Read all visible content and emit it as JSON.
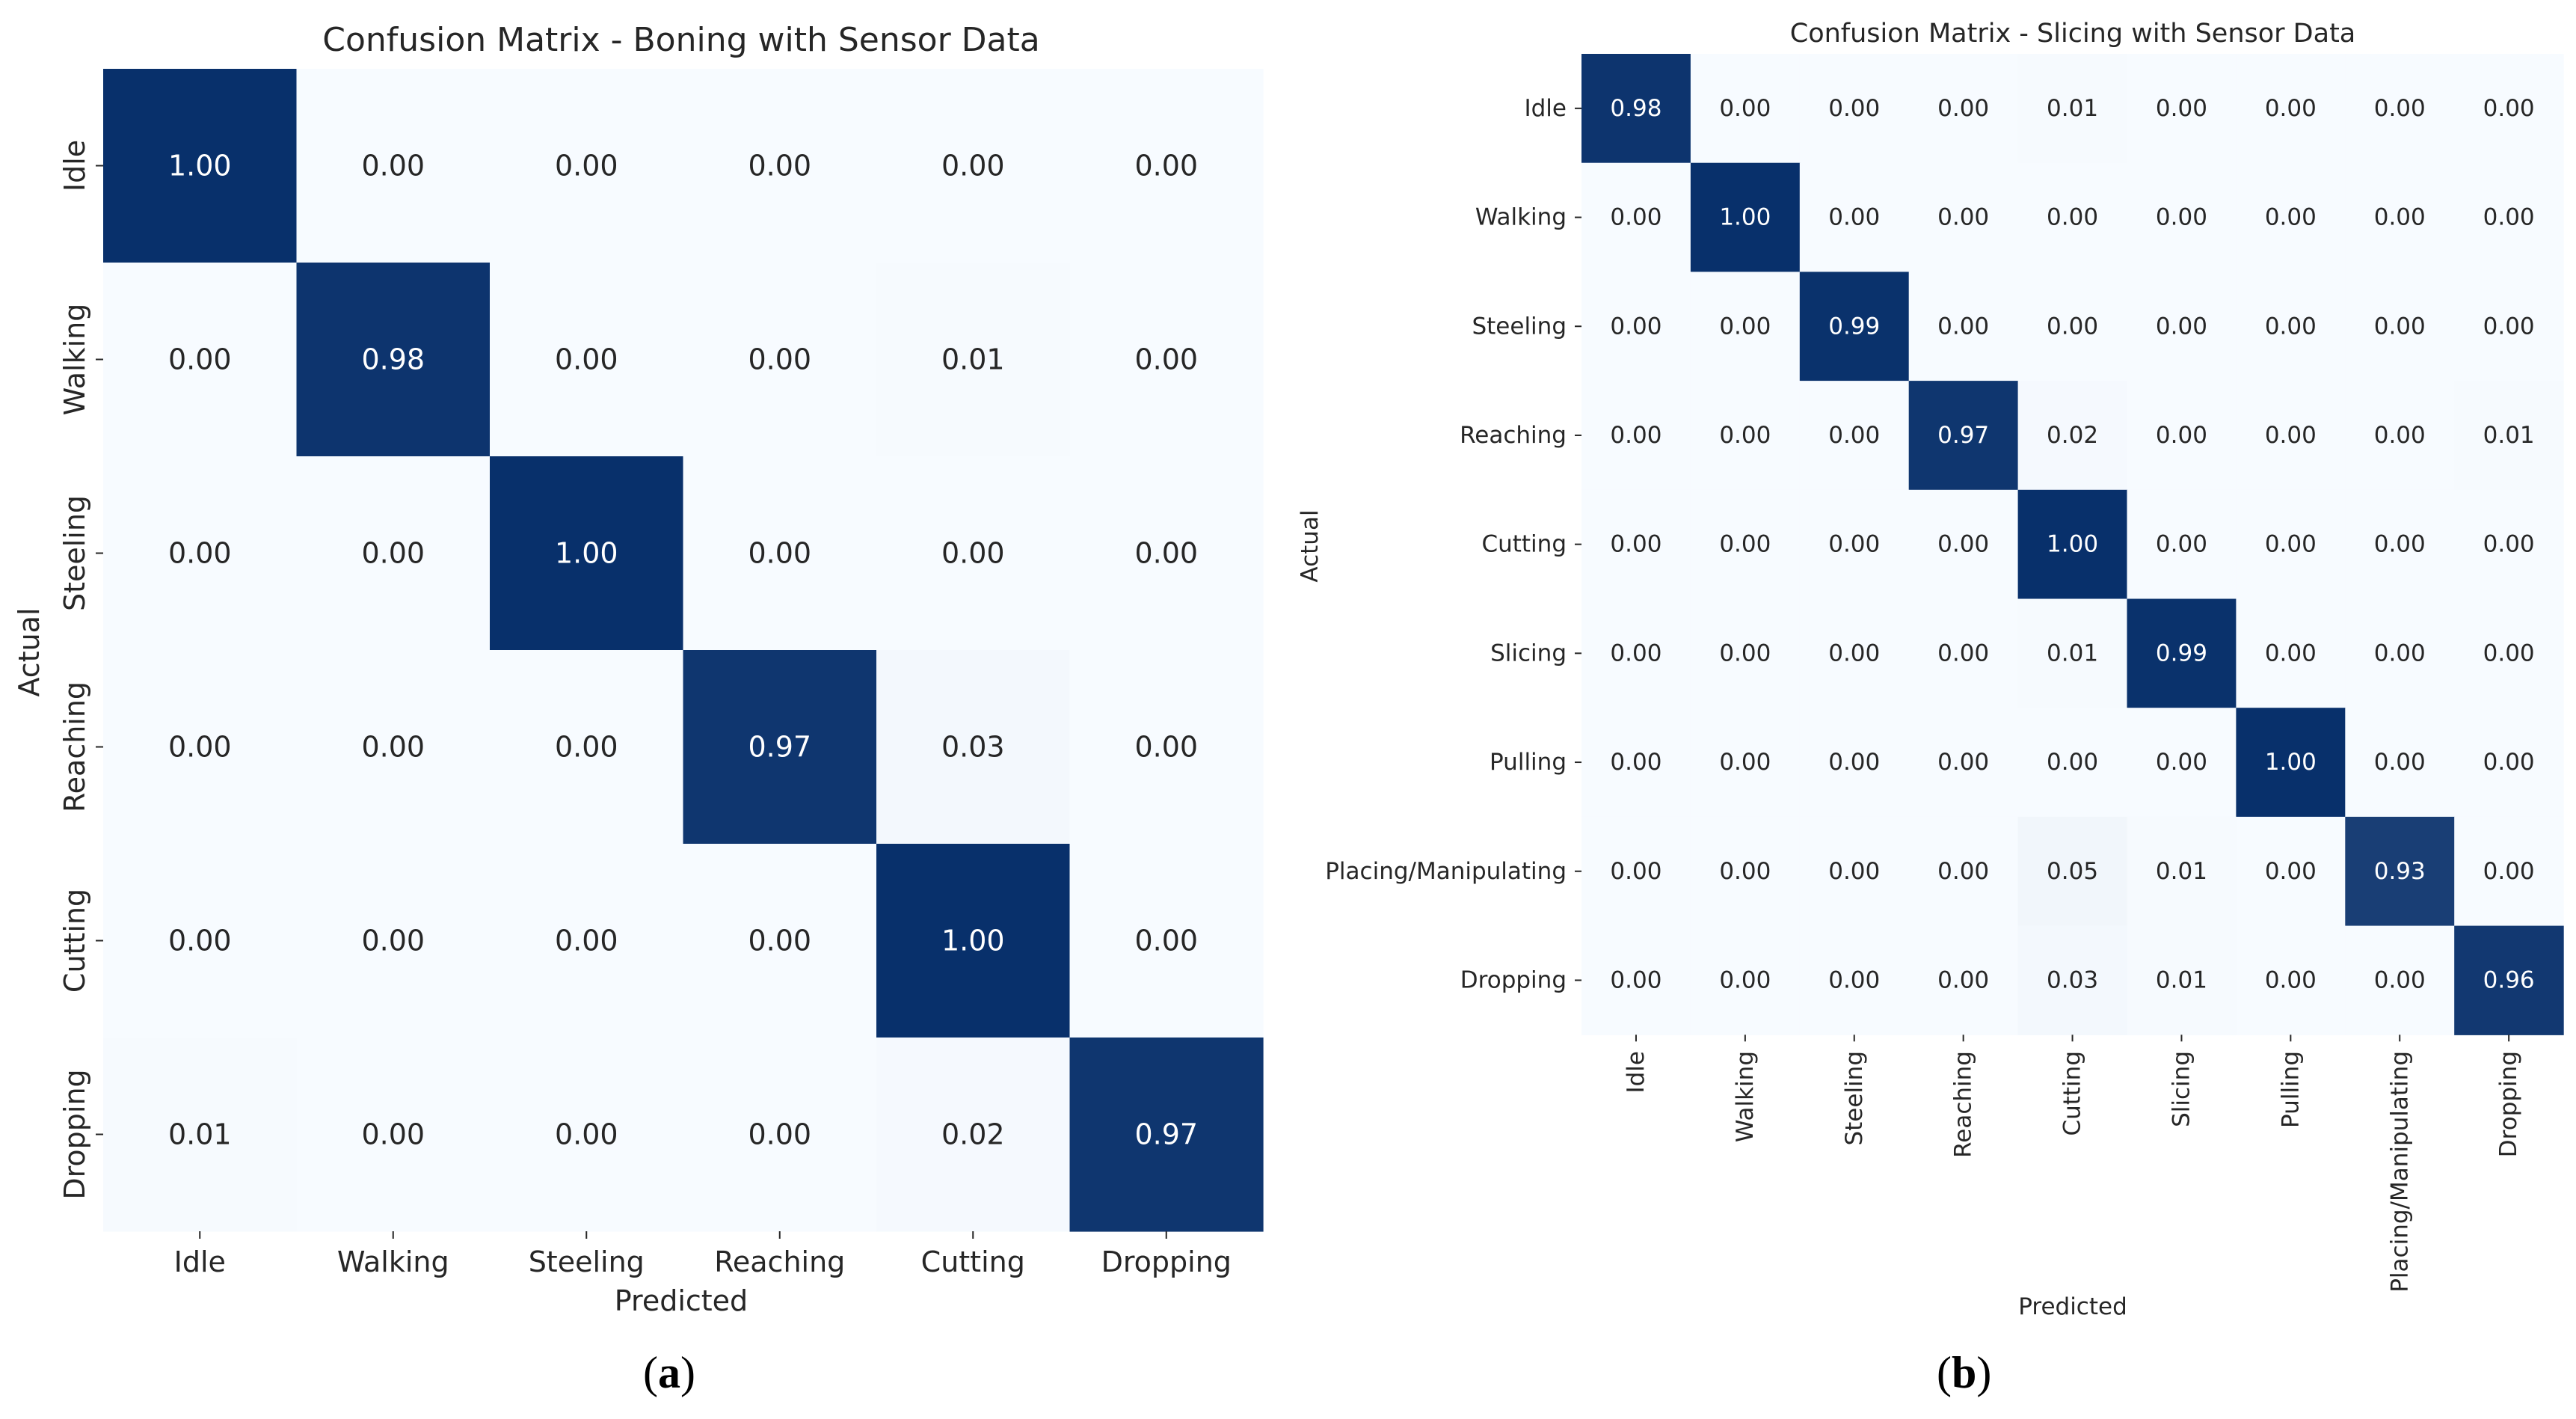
{
  "chart_data": [
    {
      "type": "heatmap",
      "title": "Confusion Matrix - Boning with Sensor Data",
      "xlabel": "Predicted",
      "ylabel": "Actual",
      "panel_label": "a",
      "x_categories": [
        "Idle",
        "Walking",
        "Steeling",
        "Reaching",
        "Cutting",
        "Dropping"
      ],
      "y_categories": [
        "Idle",
        "Walking",
        "Steeling",
        "Reaching",
        "Cutting",
        "Dropping"
      ],
      "values": [
        [
          "1.00",
          "0.00",
          "0.00",
          "0.00",
          "0.00",
          "0.00"
        ],
        [
          "0.00",
          "0.98",
          "0.00",
          "0.00",
          "0.01",
          "0.00"
        ],
        [
          "0.00",
          "0.00",
          "1.00",
          "0.00",
          "0.00",
          "0.00"
        ],
        [
          "0.00",
          "0.00",
          "0.00",
          "0.97",
          "0.03",
          "0.00"
        ],
        [
          "0.00",
          "0.00",
          "0.00",
          "0.00",
          "1.00",
          "0.00"
        ],
        [
          "0.01",
          "0.00",
          "0.00",
          "0.00",
          "0.02",
          "0.97"
        ]
      ],
      "colormap": {
        "low": "#f7fbff",
        "high": "#08306b"
      },
      "vmin": 0,
      "vmax": 1
    },
    {
      "type": "heatmap",
      "title": "Confusion Matrix - Slicing with Sensor Data",
      "xlabel": "Predicted",
      "ylabel": "Actual",
      "panel_label": "b",
      "x_categories": [
        "Idle",
        "Walking",
        "Steeling",
        "Reaching",
        "Cutting",
        "Slicing",
        "Pulling",
        "Placing/Manipulating",
        "Dropping"
      ],
      "y_categories": [
        "Idle",
        "Walking",
        "Steeling",
        "Reaching",
        "Cutting",
        "Slicing",
        "Pulling",
        "Placing/Manipulating",
        "Dropping"
      ],
      "values": [
        [
          "0.98",
          "0.00",
          "0.00",
          "0.00",
          "0.01",
          "0.00",
          "0.00",
          "0.00",
          "0.00"
        ],
        [
          "0.00",
          "1.00",
          "0.00",
          "0.00",
          "0.00",
          "0.00",
          "0.00",
          "0.00",
          "0.00"
        ],
        [
          "0.00",
          "0.00",
          "0.99",
          "0.00",
          "0.00",
          "0.00",
          "0.00",
          "0.00",
          "0.00"
        ],
        [
          "0.00",
          "0.00",
          "0.00",
          "0.97",
          "0.02",
          "0.00",
          "0.00",
          "0.00",
          "0.01"
        ],
        [
          "0.00",
          "0.00",
          "0.00",
          "0.00",
          "1.00",
          "0.00",
          "0.00",
          "0.00",
          "0.00"
        ],
        [
          "0.00",
          "0.00",
          "0.00",
          "0.00",
          "0.01",
          "0.99",
          "0.00",
          "0.00",
          "0.00"
        ],
        [
          "0.00",
          "0.00",
          "0.00",
          "0.00",
          "0.00",
          "0.00",
          "1.00",
          "0.00",
          "0.00"
        ],
        [
          "0.00",
          "0.00",
          "0.00",
          "0.00",
          "0.05",
          "0.01",
          "0.00",
          "0.93",
          "0.00"
        ],
        [
          "0.00",
          "0.00",
          "0.00",
          "0.00",
          "0.03",
          "0.01",
          "0.00",
          "0.00",
          "0.96"
        ]
      ],
      "colormap": {
        "low": "#f7fbff",
        "high": "#08306b"
      },
      "vmin": 0,
      "vmax": 1
    }
  ]
}
